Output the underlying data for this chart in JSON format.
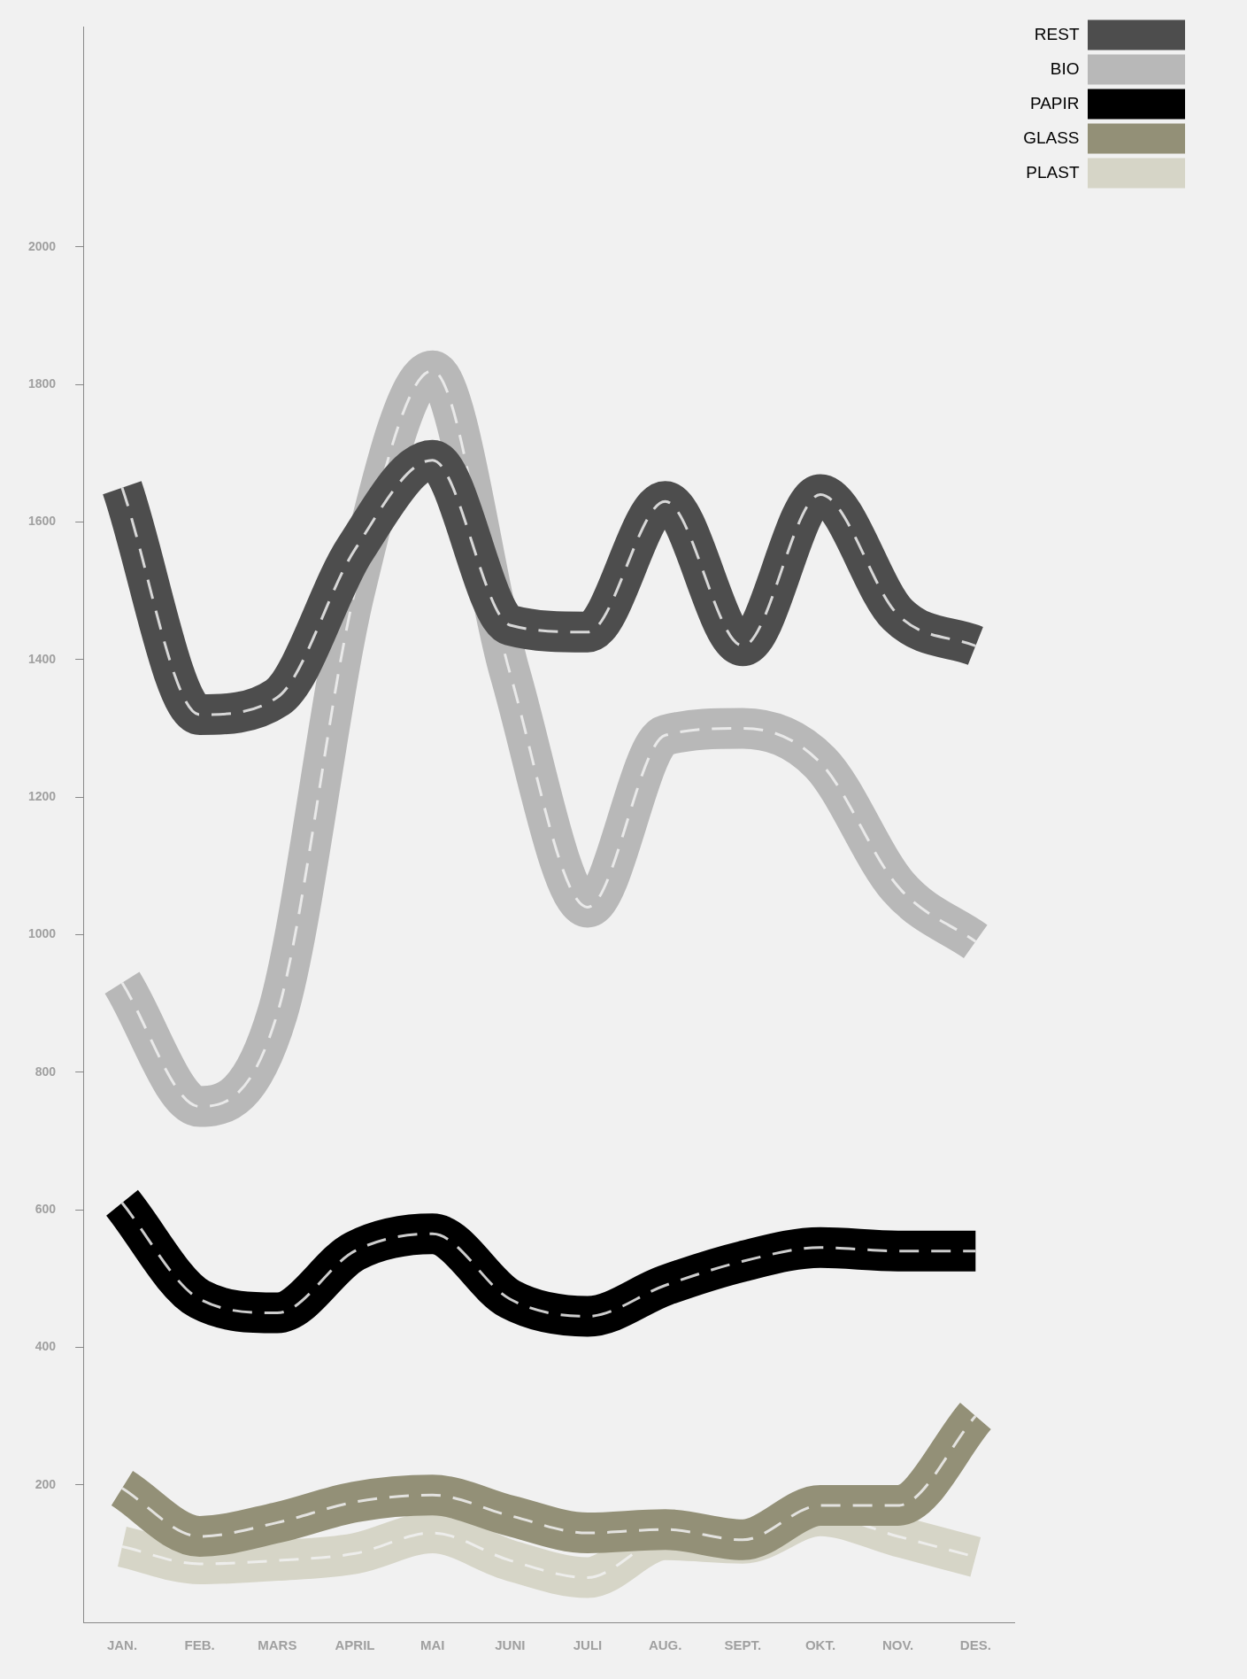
{
  "chart_data": {
    "type": "line",
    "categories": [
      "JAN.",
      "FEB.",
      "MARS",
      "APRIL",
      "MAI",
      "JUNI",
      "JULI",
      "AUG.",
      "SEPT.",
      "OKT.",
      "NOV.",
      "DES."
    ],
    "series": [
      {
        "name": "REST",
        "color": "#4d4d4d",
        "values": [
          1650,
          1320,
          1345,
          1560,
          1690,
          1450,
          1440,
          1630,
          1420,
          1640,
          1465,
          1420
        ]
      },
      {
        "name": "BIO",
        "color": "#b8b8b8",
        "values": [
          930,
          750,
          885,
          1500,
          1820,
          1380,
          1040,
          1290,
          1300,
          1250,
          1070,
          990
        ]
      },
      {
        "name": "PAPIR",
        "color": "#000000",
        "values": [
          610,
          470,
          450,
          540,
          565,
          470,
          445,
          490,
          525,
          545,
          540,
          540
        ]
      },
      {
        "name": "GLASS",
        "color": "#939077",
        "values": [
          195,
          125,
          145,
          175,
          185,
          155,
          130,
          135,
          120,
          170,
          170,
          300
        ]
      },
      {
        "name": "PLAST",
        "color": "#d6d5c7",
        "values": [
          110,
          85,
          90,
          100,
          130,
          90,
          65,
          120,
          115,
          155,
          125,
          95
        ]
      }
    ],
    "ylim": [
      0,
      2320
    ],
    "yticks": [
      200,
      400,
      600,
      800,
      1000,
      1200,
      1400,
      1600,
      1800,
      2000
    ],
    "grid": false,
    "legend": "top right",
    "line_style": "solid",
    "marker": "none"
  }
}
